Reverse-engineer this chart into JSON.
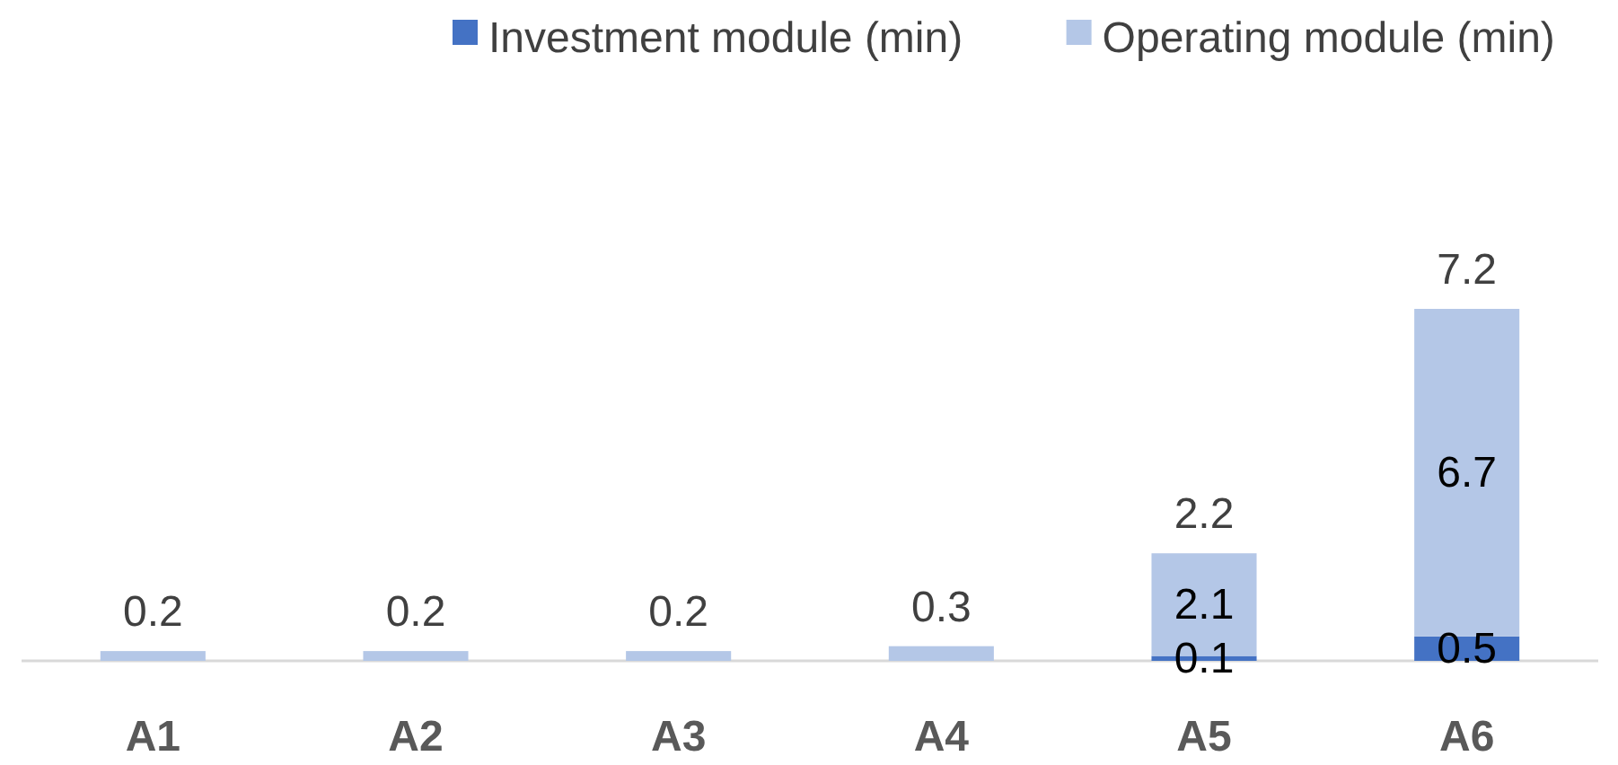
{
  "chart_data": {
    "type": "bar",
    "stacked": true,
    "categories": [
      "A1",
      "A2",
      "A3",
      "A4",
      "A5",
      "A6"
    ],
    "series": [
      {
        "name": "Investment module (min)",
        "color": "#4472c4",
        "values": [
          0,
          0,
          0,
          0,
          0.1,
          0.5
        ],
        "value_labels": [
          null,
          null,
          null,
          null,
          "0.1",
          "0.5"
        ]
      },
      {
        "name": "Operating module (min)",
        "color": "#b4c7e7",
        "values": [
          0.2,
          0.2,
          0.2,
          0.3,
          2.1,
          6.7
        ],
        "value_labels": [
          null,
          null,
          null,
          null,
          "2.1",
          "6.7"
        ]
      }
    ],
    "totals": [
      "0.2",
      "0.2",
      "0.2",
      "0.3",
      "2.2",
      "7.2"
    ],
    "legend": "top right"
  }
}
